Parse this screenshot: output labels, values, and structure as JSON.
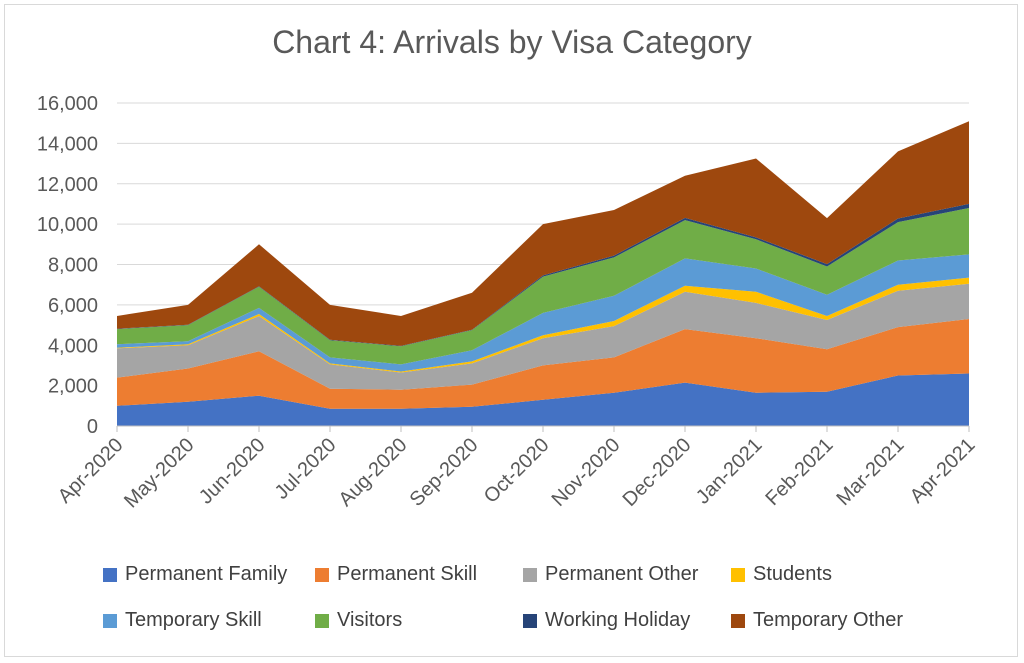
{
  "chart_data": {
    "type": "area",
    "stacked": true,
    "title": "Chart 4: Arrivals by Visa Category",
    "xlabel": "",
    "ylabel": "",
    "ylim": [
      0,
      16000
    ],
    "yticks": [
      0,
      2000,
      4000,
      6000,
      8000,
      10000,
      12000,
      14000,
      16000
    ],
    "ytick_labels": [
      "0",
      "2,000",
      "4,000",
      "6,000",
      "8,000",
      "10,000",
      "12,000",
      "14,000",
      "16,000"
    ],
    "grid": true,
    "legend_position": "bottom",
    "categories": [
      "Apr-2020",
      "May-2020",
      "Jun-2020",
      "Jul-2020",
      "Aug-2020",
      "Sep-2020",
      "Oct-2020",
      "Nov-2020",
      "Dec-2020",
      "Jan-2021",
      "Feb-2021",
      "Mar-2021",
      "Apr-2021"
    ],
    "series": [
      {
        "name": "Permanent Family",
        "color": "#4472C4",
        "values": [
          1000,
          1200,
          1500,
          850,
          850,
          950,
          1300,
          1650,
          2150,
          1650,
          1700,
          2500,
          2600
        ]
      },
      {
        "name": "Permanent Skill",
        "color": "#ED7D31",
        "values": [
          1400,
          1650,
          2200,
          1000,
          950,
          1100,
          1700,
          1750,
          2650,
          2700,
          2100,
          2400,
          2700
        ]
      },
      {
        "name": "Permanent Other",
        "color": "#A5A5A5",
        "values": [
          1450,
          1150,
          1750,
          1200,
          850,
          1050,
          1350,
          1550,
          1850,
          1750,
          1450,
          1800,
          1750
        ]
      },
      {
        "name": "Students",
        "color": "#FFC000",
        "values": [
          30,
          50,
          100,
          50,
          50,
          100,
          150,
          250,
          300,
          550,
          200,
          300,
          300
        ]
      },
      {
        "name": "Temporary Skill",
        "color": "#5B9BD5",
        "values": [
          170,
          150,
          300,
          300,
          350,
          550,
          1100,
          1250,
          1350,
          1150,
          1050,
          1200,
          1150
        ]
      },
      {
        "name": "Visitors",
        "color": "#70AD47",
        "values": [
          750,
          800,
          1050,
          850,
          900,
          1000,
          1800,
          1900,
          1900,
          1450,
          1400,
          1900,
          2300
        ]
      },
      {
        "name": "Working Holiday",
        "color": "#264478",
        "values": [
          20,
          20,
          20,
          20,
          20,
          20,
          60,
          90,
          110,
          90,
          120,
          180,
          200
        ]
      },
      {
        "name": "Temporary Other",
        "color": "#9E480E",
        "values": [
          630,
          980,
          2080,
          1730,
          1480,
          1830,
          2540,
          2260,
          2090,
          3910,
          2280,
          3320,
          4100
        ]
      }
    ]
  }
}
